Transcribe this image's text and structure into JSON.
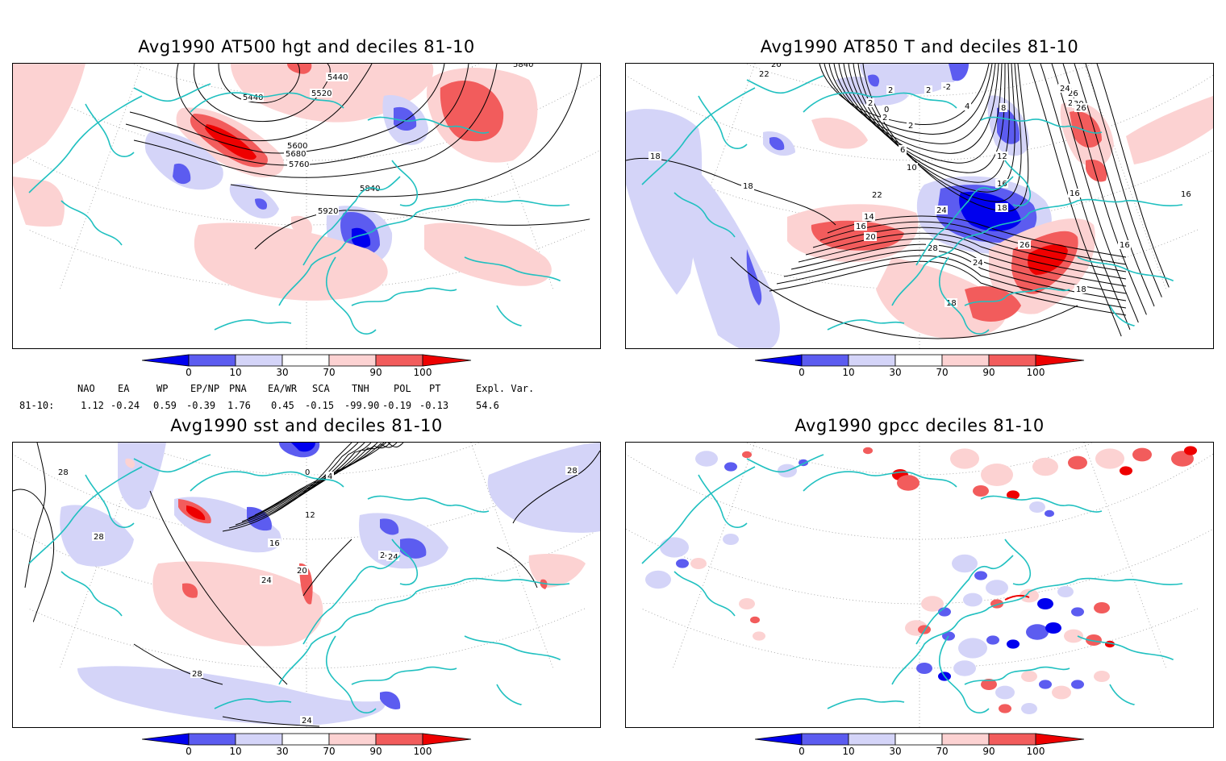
{
  "panels": [
    {
      "id": "p1",
      "title": "Avg1990 AT500 hgt and deciles 81-10"
    },
    {
      "id": "p2",
      "title": "Avg1990 AT850 T and deciles 81-10"
    },
    {
      "id": "p3",
      "title": "Avg1990 sst and deciles 81-10"
    },
    {
      "id": "p4",
      "title": "Avg1990 gpcc deciles 81-10"
    }
  ],
  "colorbar": {
    "labels": [
      "0",
      "10",
      "30",
      "70",
      "90",
      "100"
    ],
    "colors": [
      "#0000ee",
      "#5c5cf0",
      "#d4d4f8",
      "#ffffff",
      "#fcd2d2",
      "#f25c5c",
      "#ee0000"
    ]
  },
  "contour_labels": {
    "p1": [
      "5440",
      "5520",
      "5440",
      "5600",
      "5680",
      "5760",
      "5840",
      "5920",
      "5840"
    ],
    "p2": [
      "20",
      "22",
      "2",
      "2",
      "2",
      "2",
      "-2",
      "0",
      "4",
      "8",
      "2",
      "6",
      "10",
      "12",
      "16",
      "18",
      "18",
      "14",
      "16",
      "20",
      "22",
      "24",
      "28",
      "26",
      "24",
      "26",
      "28",
      "30",
      "24",
      "26",
      "16",
      "18",
      "16",
      "16",
      "18",
      "18"
    ],
    "p3": [
      "0",
      "4",
      "12",
      "16",
      "20",
      "24",
      "24",
      "24",
      "28",
      "28",
      "28",
      "28",
      "24"
    ]
  },
  "indices": {
    "header": [
      "NAO",
      "EA",
      "WP",
      "EP/NP",
      "PNA",
      "EA/WR",
      "SCA",
      "TNH",
      "POL",
      "PT",
      "Expl. Var."
    ],
    "row_label": "81-10:",
    "values": [
      "1.12",
      "-0.24",
      "0.59",
      "-0.39",
      "1.76",
      "0.45",
      "-0.15",
      "-99.90",
      "-0.19",
      "-0.13",
      "54.6"
    ]
  }
}
